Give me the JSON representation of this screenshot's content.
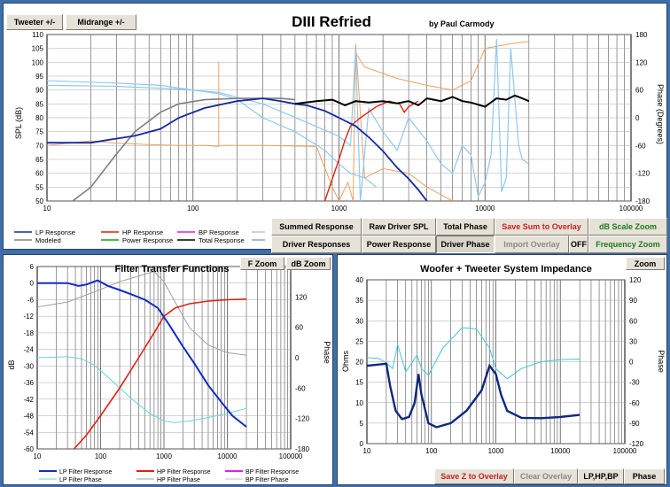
{
  "main": {
    "title": "DIII Refried",
    "author": "by Paul Carmody",
    "buttons": {
      "tweeter": "Tweeter +/-",
      "midrange": "Midrange  +/-"
    },
    "y_label": "SPL (dB)",
    "y2_label": "Phase (Degrees)",
    "y_ticks": [
      "110",
      "105",
      "100",
      "95",
      "90",
      "85",
      "80",
      "75",
      "70",
      "65",
      "60",
      "55",
      "50"
    ],
    "y2_ticks": [
      "180",
      "120",
      "60",
      "0",
      "-60",
      "-120",
      "-180"
    ],
    "x_ticks": [
      "10",
      "100",
      "1000",
      "10000",
      "100000"
    ],
    "legend": [
      "LP Response",
      "HP Response",
      "BP Response",
      "Modeled",
      "Power Response",
      "Total Response"
    ],
    "colors": {
      "lp": "#1428a0",
      "hp": "#e02010",
      "bp": "#e020e0",
      "modeled": "#808080",
      "power": "#18a018",
      "total": "#000000",
      "phase1": "#f0a060",
      "phase2": "#90c8f0"
    }
  },
  "controls": {
    "summed": "Summed Response",
    "raw": "Raw Driver SPL",
    "total_phase": "Total Phase",
    "save_sum": "Save Sum to Overlay",
    "db_scale": "dB Scale Zoom",
    "driver_responses": "Driver Responses",
    "power_response": "Power Response",
    "driver_phase": "Driver Phase",
    "import_overlay": "Import Overlay",
    "off": "OFF",
    "freq_zoom": "Frequency Zoom"
  },
  "filter": {
    "title": "Filter Transfer Functions",
    "f_zoom": "F Zoom",
    "db_zoom": "dB Zoom",
    "y_label": "dB",
    "y2_label": "Phase",
    "y_ticks": [
      "6",
      "0",
      "-6",
      "-12",
      "-18",
      "-24",
      "-30",
      "-36",
      "-42",
      "-48",
      "-54",
      "-60"
    ],
    "y2_ticks": [
      "180",
      "120",
      "60",
      "0",
      "-60",
      "-120",
      "-180"
    ],
    "x_ticks": [
      "10",
      "100",
      "1000",
      "10000",
      "100000"
    ],
    "legend": [
      "LP Filter Response",
      "HP Filter Response",
      "BP Filter Response",
      "LP Filter Phase",
      "HP Filter Phase",
      "BP Filter Phase"
    ]
  },
  "impedance": {
    "title": "Woofer + Tweeter   System Impedance",
    "zoom": "Zoom",
    "y_label": "Ohms",
    "y2_label": "Phase",
    "y_ticks": [
      "40",
      "35",
      "30",
      "25",
      "20",
      "15",
      "10",
      "5",
      "0"
    ],
    "y2_ticks": [
      "120",
      "90",
      "60",
      "30",
      "0",
      "-30",
      "-60",
      "-90",
      "-120"
    ],
    "x_ticks": [
      "10",
      "100",
      "1000",
      "10000",
      "100000"
    ],
    "save_z": "Save Z to Overlay",
    "clear_overlay": "Clear Overlay",
    "lphpbp": "LP,HP,BP",
    "phase": "Phase"
  }
}
